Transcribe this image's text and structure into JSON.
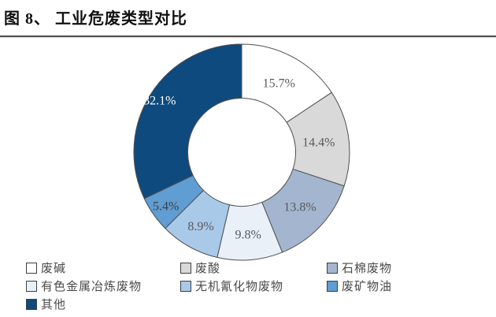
{
  "header": {
    "title": "图 8、 工业危废类型对比"
  },
  "chart_data": {
    "type": "pie",
    "subtype": "donut",
    "title": "图 8、 工业危废类型对比",
    "categories": [
      "废碱",
      "废酸",
      "石棉废物",
      "有色金属冶炼废物",
      "无机氰化物废物",
      "废矿物油",
      "其他"
    ],
    "values": [
      15.7,
      14.4,
      13.8,
      9.8,
      8.9,
      5.4,
      32.1
    ],
    "labels": [
      "15.7%",
      "14.4%",
      "13.8%",
      "9.8%",
      "8.9%",
      "5.4%",
      "32.1%"
    ],
    "colors": [
      "#ffffff",
      "#d9d9d9",
      "#a4b6cf",
      "#e9f0f8",
      "#a9c9e9",
      "#5f9dd3",
      "#0e4a7e"
    ],
    "label_colors": [
      "#595959",
      "#595959",
      "#595959",
      "#595959",
      "#595959",
      "#3f3f3f",
      "#ffffff"
    ],
    "label_radius_ratios": [
      0.73,
      0.72,
      0.74,
      0.76,
      0.78,
      0.86,
      0.9
    ],
    "stroke": "#4f4f4f",
    "start_angle_deg": 0,
    "direction": "clockwise",
    "inner_radius_ratio": 0.5,
    "legend_position": "bottom",
    "legend_columns": 3,
    "grid": false
  }
}
